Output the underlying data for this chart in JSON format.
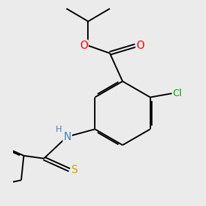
{
  "bg_color": "#ebebeb",
  "bond_color": "#000000",
  "atom_colors": {
    "O": "#ff0000",
    "N": "#4682b4",
    "Cl": "#00aa00",
    "S_thio": "#ccaa00",
    "S_ring": "#ccaa00",
    "C": "#000000",
    "H": "#4682b4"
  },
  "figsize": [
    3.0,
    3.0
  ],
  "dpi": 100
}
